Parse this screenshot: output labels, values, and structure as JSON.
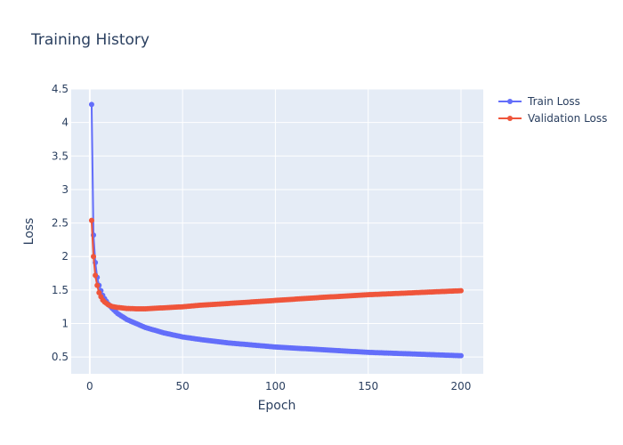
{
  "chart_data": {
    "type": "line",
    "title": "Training History",
    "xlabel": "Epoch",
    "ylabel": "Loss",
    "xlim": [
      -10,
      212
    ],
    "ylim": [
      0.25,
      4.5
    ],
    "xticks": [
      0,
      50,
      100,
      150,
      200
    ],
    "yticks": [
      0.5,
      1,
      1.5,
      2,
      2.5,
      3,
      3.5,
      4,
      4.5
    ],
    "ytick_labels": [
      "0.5",
      "1",
      "1.5",
      "2",
      "2.5",
      "3",
      "3.5",
      "4",
      "4.5"
    ],
    "grid": true,
    "legend_position": "top-right",
    "x_range": [
      1,
      200
    ],
    "series": [
      {
        "name": "Train Loss",
        "color": "#636efa",
        "key_points": [
          [
            1,
            4.27
          ],
          [
            2,
            2.32
          ],
          [
            3,
            1.91
          ],
          [
            4,
            1.69
          ],
          [
            5,
            1.57
          ],
          [
            6,
            1.49
          ],
          [
            7,
            1.42
          ],
          [
            8,
            1.37
          ],
          [
            10,
            1.29
          ],
          [
            12,
            1.23
          ],
          [
            15,
            1.15
          ],
          [
            20,
            1.06
          ],
          [
            25,
            1.0
          ],
          [
            30,
            0.94
          ],
          [
            40,
            0.86
          ],
          [
            50,
            0.8
          ],
          [
            60,
            0.76
          ],
          [
            75,
            0.71
          ],
          [
            100,
            0.65
          ],
          [
            125,
            0.61
          ],
          [
            150,
            0.57
          ],
          [
            175,
            0.545
          ],
          [
            200,
            0.52
          ]
        ]
      },
      {
        "name": "Validation Loss",
        "color": "#ef553b",
        "key_points": [
          [
            1,
            2.54
          ],
          [
            2,
            2.0
          ],
          [
            3,
            1.72
          ],
          [
            4,
            1.57
          ],
          [
            5,
            1.46
          ],
          [
            6,
            1.4
          ],
          [
            7,
            1.35
          ],
          [
            8,
            1.32
          ],
          [
            10,
            1.28
          ],
          [
            12,
            1.255
          ],
          [
            15,
            1.24
          ],
          [
            20,
            1.225
          ],
          [
            25,
            1.22
          ],
          [
            30,
            1.22
          ],
          [
            40,
            1.235
          ],
          [
            50,
            1.25
          ],
          [
            60,
            1.275
          ],
          [
            75,
            1.3
          ],
          [
            100,
            1.345
          ],
          [
            125,
            1.39
          ],
          [
            150,
            1.43
          ],
          [
            175,
            1.46
          ],
          [
            200,
            1.49
          ]
        ]
      }
    ]
  }
}
